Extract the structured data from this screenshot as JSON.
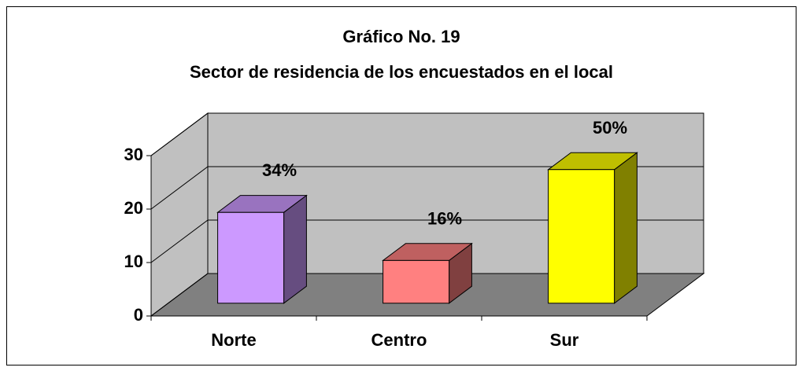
{
  "chart_data": {
    "type": "bar3d",
    "title": "Gráfico No. 19",
    "subtitle": "Sector de residencia de los encuestados en el local",
    "categories": [
      "Norte",
      "Centro",
      "Sur"
    ],
    "values": [
      17,
      8,
      25
    ],
    "value_labels": [
      "34%",
      "16%",
      "50%"
    ],
    "colors": [
      "#cc99ff",
      "#ff8080",
      "#ffff00"
    ],
    "ylim": [
      0,
      30
    ],
    "yticks": [
      0,
      10,
      20,
      30
    ],
    "grid": true
  }
}
